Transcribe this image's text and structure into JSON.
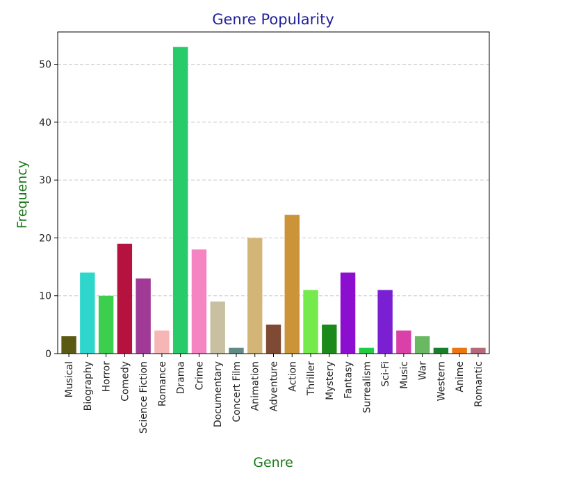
{
  "chart_data": {
    "type": "bar",
    "title": "Genre Popularity",
    "xlabel": "Genre",
    "ylabel": "Frequency",
    "ylim": [
      0,
      55.6
    ],
    "yticks": [
      0,
      10,
      20,
      30,
      40,
      50
    ],
    "grid": "y, dashed",
    "colors": {
      "title": "#1f1f99",
      "axis_label": "#1a7a1a",
      "grid": "#c8c8c8"
    },
    "categories": [
      "Musical",
      "Biography",
      "Horror",
      "Comedy",
      "Science Fiction",
      "Romance",
      "Drama",
      "Crime",
      "Documentary",
      "Concert Film",
      "Animation",
      "Adventure",
      "Action",
      "Thriller",
      "Mystery",
      "Fantasy",
      "Surrealism",
      "Sci-Fi",
      "Music",
      "War",
      "Western",
      "Anime",
      "Romantic"
    ],
    "values": [
      3,
      14,
      10,
      19,
      13,
      4,
      53,
      18,
      9,
      1,
      20,
      5,
      24,
      11,
      5,
      14,
      1,
      11,
      4,
      3,
      1,
      1,
      1
    ],
    "bar_colors": [
      "#5c5a12",
      "#2ed6cc",
      "#3ccf4e",
      "#b5123f",
      "#a03a96",
      "#f7b6b6",
      "#27cb69",
      "#f484c2",
      "#c8c0a0",
      "#5f8a85",
      "#d4b578",
      "#7f4a34",
      "#cc9438",
      "#74ea4d",
      "#1b8a1b",
      "#8c0fcf",
      "#1fcc44",
      "#7a1fd2",
      "#d940a8",
      "#6ab862",
      "#1a7f2a",
      "#ea770f",
      "#b46a78"
    ]
  }
}
